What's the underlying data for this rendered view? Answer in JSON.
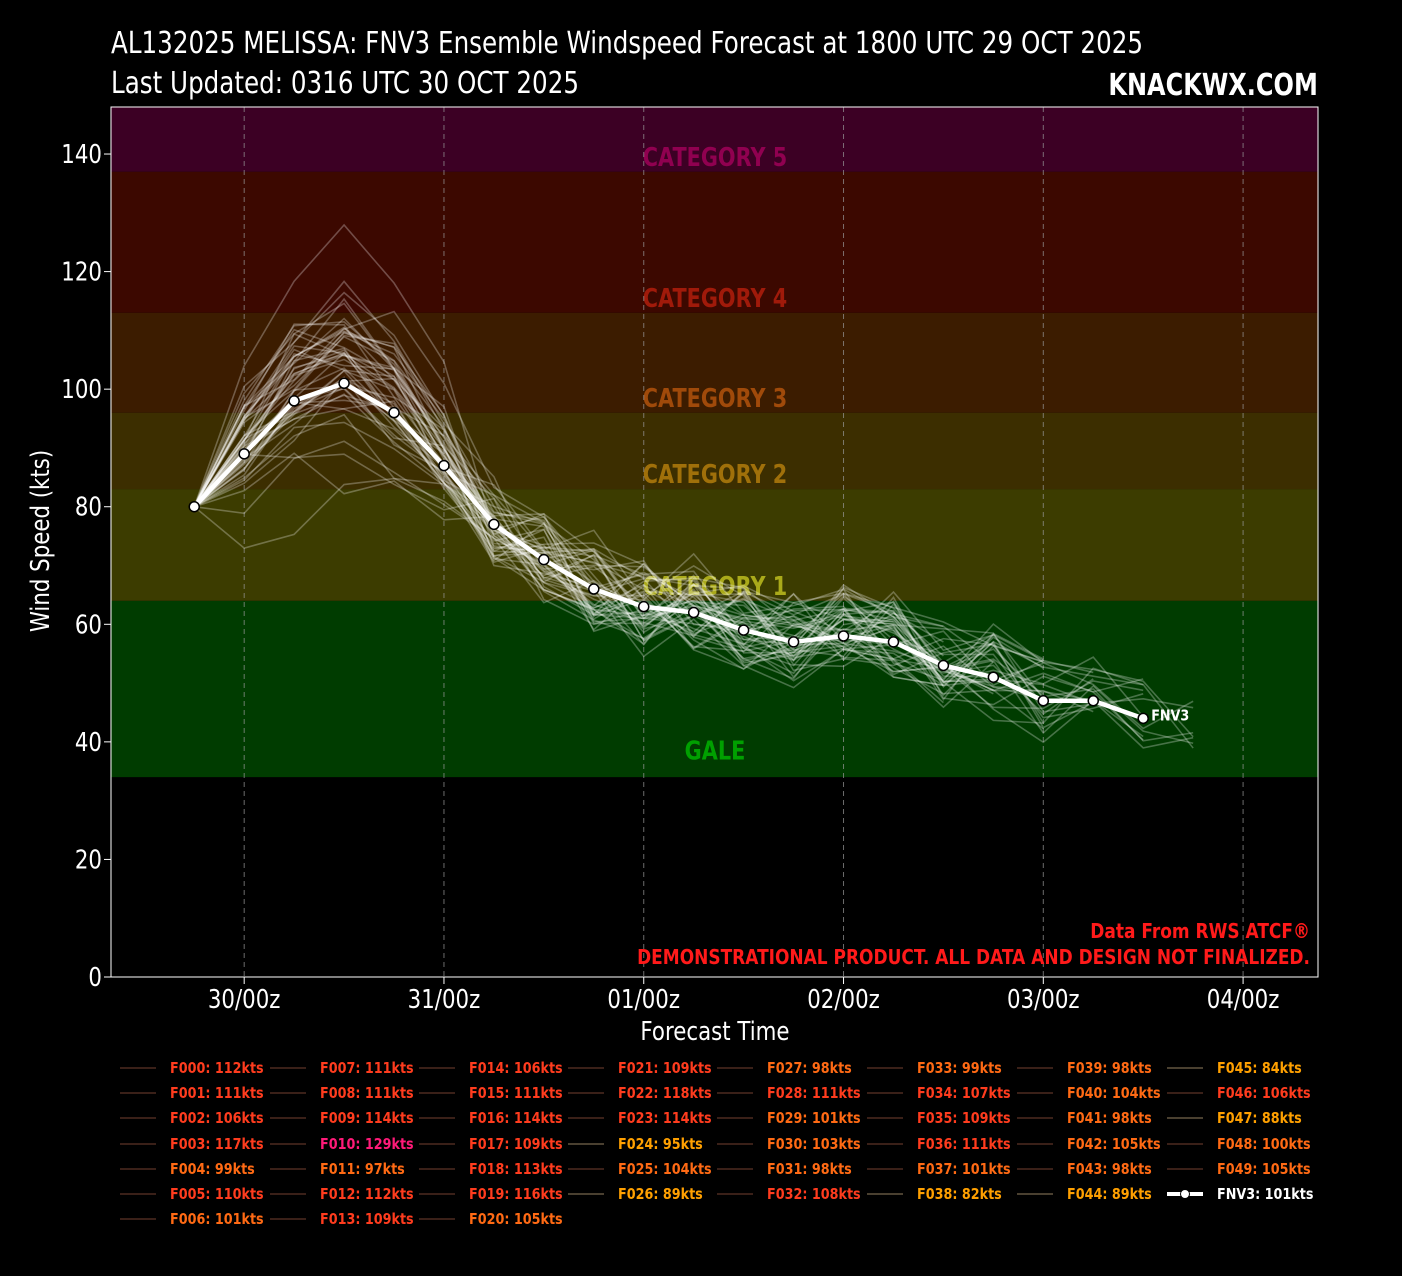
{
  "header": {
    "title_line1": "AL132025 MELISSA: FNV3 Ensemble Windspeed Forecast at 1800 UTC 29 OCT 2025",
    "title_line2": "Last Updated: 0316 UTC 30 OCT 2025",
    "brand": "KNACKWX.COM"
  },
  "notes": {
    "source": "Data From RWS ATCF®",
    "disclaimer": "DEMONSTRATIONAL PRODUCT. ALL DATA AND DESIGN NOT FINALIZED."
  },
  "chart_data": {
    "type": "line",
    "title": "AL132025 MELISSA: FNV3 Ensemble Windspeed Forecast at 1800 UTC 29 OCT 2025",
    "xlabel": "Forecast Time",
    "ylabel": "Wind Speed (kts)",
    "ylim": [
      0,
      148
    ],
    "yticks": [
      0,
      20,
      40,
      60,
      80,
      100,
      120,
      140
    ],
    "x_unit": "forecast hour from 29/18z",
    "xlim": [
      -10,
      135
    ],
    "xticks": [
      {
        "x": 6,
        "label": "30/00z"
      },
      {
        "x": 30,
        "label": "31/00z"
      },
      {
        "x": 54,
        "label": "01/00z"
      },
      {
        "x": 78,
        "label": "02/00z"
      },
      {
        "x": 102,
        "label": "03/00z"
      },
      {
        "x": 126,
        "label": "04/00z"
      }
    ],
    "grid": true,
    "intensity_bands": [
      {
        "label": "GALE",
        "min": 34,
        "max": 64,
        "color": "#003c00",
        "label_color": "#00a000",
        "label_y": 37
      },
      {
        "label": "CATEGORY 1",
        "min": 64,
        "max": 83,
        "color": "#3c3c00",
        "label_color": "#aaaa1a",
        "label_y": 65
      },
      {
        "label": "CATEGORY 2",
        "min": 83,
        "max": 96,
        "color": "#3c2e00",
        "label_color": "#a0700a",
        "label_y": 84
      },
      {
        "label": "CATEGORY 3",
        "min": 96,
        "max": 113,
        "color": "#3c1c00",
        "label_color": "#a04a0a",
        "label_y": 97
      },
      {
        "label": "CATEGORY 4",
        "min": 113,
        "max": 137,
        "color": "#3c0800",
        "label_color": "#a01a0a",
        "label_y": 114
      },
      {
        "label": "CATEGORY 5",
        "min": 137,
        "max": 148,
        "color": "#3c0024",
        "label_color": "#900050",
        "label_y": 138
      }
    ],
    "main_series": {
      "name": "FNV3",
      "x": [
        0,
        6,
        12,
        18,
        24,
        30,
        36,
        42,
        48,
        54,
        60,
        66,
        72,
        78,
        84,
        90,
        96,
        102,
        108,
        114
      ],
      "values": [
        80,
        89,
        98,
        101,
        96,
        87,
        77,
        71,
        66,
        63,
        62,
        59,
        57,
        58,
        57,
        53,
        51,
        47,
        47,
        44
      ]
    },
    "members": [
      {
        "name": "F000",
        "peak": 112
      },
      {
        "name": "F001",
        "peak": 111
      },
      {
        "name": "F002",
        "peak": 106
      },
      {
        "name": "F003",
        "peak": 117
      },
      {
        "name": "F004",
        "peak": 99
      },
      {
        "name": "F005",
        "peak": 110
      },
      {
        "name": "F006",
        "peak": 101
      },
      {
        "name": "F007",
        "peak": 111
      },
      {
        "name": "F008",
        "peak": 111
      },
      {
        "name": "F009",
        "peak": 114
      },
      {
        "name": "F010",
        "peak": 129
      },
      {
        "name": "F011",
        "peak": 97
      },
      {
        "name": "F012",
        "peak": 112
      },
      {
        "name": "F013",
        "peak": 109
      },
      {
        "name": "F014",
        "peak": 106
      },
      {
        "name": "F015",
        "peak": 111
      },
      {
        "name": "F016",
        "peak": 114
      },
      {
        "name": "F017",
        "peak": 109
      },
      {
        "name": "F018",
        "peak": 113
      },
      {
        "name": "F019",
        "peak": 116
      },
      {
        "name": "F020",
        "peak": 105
      },
      {
        "name": "F021",
        "peak": 109
      },
      {
        "name": "F022",
        "peak": 118
      },
      {
        "name": "F023",
        "peak": 114
      },
      {
        "name": "F024",
        "peak": 95
      },
      {
        "name": "F025",
        "peak": 104
      },
      {
        "name": "F026",
        "peak": 89
      },
      {
        "name": "F027",
        "peak": 98
      },
      {
        "name": "F028",
        "peak": 111
      },
      {
        "name": "F029",
        "peak": 101
      },
      {
        "name": "F030",
        "peak": 103
      },
      {
        "name": "F031",
        "peak": 98
      },
      {
        "name": "F032",
        "peak": 108
      },
      {
        "name": "F033",
        "peak": 99
      },
      {
        "name": "F034",
        "peak": 107
      },
      {
        "name": "F035",
        "peak": 109
      },
      {
        "name": "F036",
        "peak": 111
      },
      {
        "name": "F037",
        "peak": 101
      },
      {
        "name": "F038",
        "peak": 82
      },
      {
        "name": "F039",
        "peak": 98
      },
      {
        "name": "F040",
        "peak": 104
      },
      {
        "name": "F041",
        "peak": 98
      },
      {
        "name": "F042",
        "peak": 105
      },
      {
        "name": "F043",
        "peak": 98
      },
      {
        "name": "F044",
        "peak": 89
      },
      {
        "name": "F045",
        "peak": 84
      },
      {
        "name": "F046",
        "peak": 106
      },
      {
        "name": "F047",
        "peak": 88
      },
      {
        "name": "F048",
        "peak": 100
      },
      {
        "name": "F049",
        "peak": 105
      }
    ],
    "legend": {
      "entries": [
        "F000: 112kts",
        "F001: 111kts",
        "F002: 106kts",
        "F003: 117kts",
        "F004: 99kts",
        "F005: 110kts",
        "F006: 101kts",
        "F007: 111kts",
        "F008: 111kts",
        "F009: 114kts",
        "F010: 129kts",
        "F011: 97kts",
        "F012: 112kts",
        "F013: 109kts",
        "F014: 106kts",
        "F015: 111kts",
        "F016: 114kts",
        "F017: 109kts",
        "F018: 113kts",
        "F019: 116kts",
        "F020: 105kts",
        "F021: 109kts",
        "F022: 118kts",
        "F023: 114kts",
        "F024: 95kts",
        "F025: 104kts",
        "F026: 89kts",
        "F027: 98kts",
        "F028: 111kts",
        "F029: 101kts",
        "F030: 103kts",
        "F031: 98kts",
        "F032: 108kts",
        "F033: 99kts",
        "F034: 107kts",
        "F035: 109kts",
        "F036: 111kts",
        "F037: 101kts",
        "F038: 82kts",
        "F039: 98kts",
        "F040: 104kts",
        "F041: 98kts",
        "F042: 105kts",
        "F043: 98kts",
        "F044: 89kts",
        "F045: 84kts",
        "F046: 106kts",
        "F047: 88kts",
        "F048: 100kts",
        "F049: 105kts",
        "FNV3: 101kts"
      ],
      "column_sizes": [
        7,
        7,
        7,
        6,
        6,
        6,
        6,
        6
      ],
      "colors": {
        "cat4": "#ff3c1e",
        "cat3": "#ff6a14",
        "cat2": "#ffa000",
        "cat5": "#ff1a78",
        "fnv": "#ffffff"
      },
      "placement": "below-chart"
    }
  }
}
